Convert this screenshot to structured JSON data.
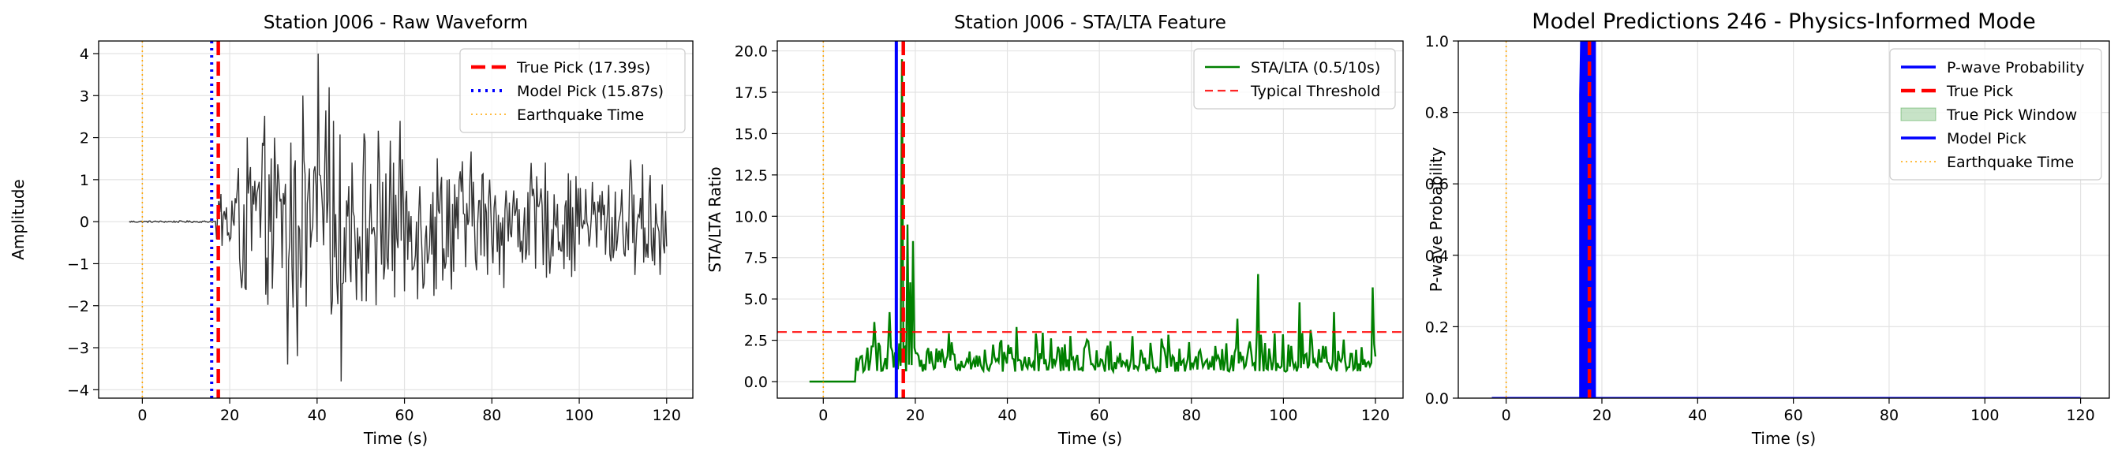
{
  "chart_data": [
    {
      "type": "line",
      "title": "Station J006 - Raw Waveform",
      "xlabel": "Time (s)",
      "ylabel": "Amplitude",
      "xlim": [
        -10,
        126
      ],
      "ylim": [
        -4.2,
        4.3
      ],
      "xticks": [
        0,
        20,
        40,
        60,
        80,
        100,
        120
      ],
      "yticks": [
        -4,
        -3,
        -2,
        -1,
        0,
        1,
        2,
        3,
        4
      ],
      "grid": true,
      "legend_position": "top-right",
      "series": [
        {
          "name": "",
          "color": "#333333",
          "role": "waveform",
          "x_range": [
            -3,
            120
          ],
          "noise_level": 0.02,
          "onset": 17.0,
          "envelope": [
            [
              17,
              1.0
            ],
            [
              25,
              2.6
            ],
            [
              45,
              2.8
            ],
            [
              80,
              1.8
            ],
            [
              100,
              1.5
            ],
            [
              120,
              1.7
            ]
          ],
          "peaks": [
            [
              40.2,
              4.0
            ],
            [
              45.5,
              -3.8
            ],
            [
              42.8,
              3.2
            ],
            [
              35.6,
              -3.2
            ],
            [
              36.7,
              3.0
            ],
            [
              33.3,
              -3.4
            ]
          ]
        },
        {
          "name": "True Pick (17.39s)",
          "color": "#ff0000",
          "role": "vline",
          "x": 17.39,
          "style": "dashed"
        },
        {
          "name": "Model Pick (15.87s)",
          "color": "#0000ff",
          "role": "vline",
          "x": 15.87,
          "style": "dotted"
        },
        {
          "name": "Earthquake Time",
          "color": "#ffa500",
          "role": "vline",
          "x": 0,
          "style": "dotted-thin"
        }
      ]
    },
    {
      "type": "line",
      "title": "Station J006 - STA/LTA Feature",
      "xlabel": "Time (s)",
      "ylabel": "STA/LTA Ratio",
      "xlim": [
        -10,
        126
      ],
      "ylim": [
        -1.0,
        20.6
      ],
      "xticks": [
        0,
        20,
        40,
        60,
        80,
        100,
        120
      ],
      "yticks": [
        0.0,
        2.5,
        5.0,
        7.5,
        10.0,
        12.5,
        15.0,
        17.5,
        20.0
      ],
      "grid": true,
      "legend_position": "top-right",
      "series": [
        {
          "name": "STA/LTA (0.5/10s)",
          "color": "#008000",
          "role": "stalta",
          "x_range": [
            -3,
            120
          ],
          "flat_until": 7.0,
          "spikes": [
            [
              17.2,
              19.5
            ],
            [
              18.4,
              9.5
            ],
            [
              19.6,
              8.5
            ],
            [
              19.0,
              6.0
            ],
            [
              94.5,
              6.5
            ],
            [
              119.5,
              5.7
            ],
            [
              103.5,
              4.8
            ],
            [
              111.0,
              4.2
            ],
            [
              90.0,
              3.8
            ],
            [
              14.5,
              4.2
            ],
            [
              11.0,
              3.6
            ],
            [
              42.0,
              3.3
            ]
          ]
        },
        {
          "name": "Typical Threshold",
          "color": "#ff0000",
          "role": "hline",
          "y": 3.0,
          "style": "dashed"
        },
        {
          "name": "",
          "color": "#ff0000",
          "role": "vline",
          "x": 17.39,
          "style": "dashed"
        },
        {
          "name": "",
          "color": "#0000ff",
          "role": "vline",
          "x": 15.87,
          "style": "solid"
        },
        {
          "name": "",
          "color": "#ffa500",
          "role": "vline",
          "x": 0,
          "style": "dotted-thin"
        }
      ]
    },
    {
      "type": "line",
      "title": "Model Predictions 246 - Physics-Informed Mode",
      "xlabel": "Time (s)",
      "ylabel": "P-wave Probability",
      "xlim": [
        -10,
        126
      ],
      "ylim": [
        0.0,
        1.0
      ],
      "xticks": [
        0,
        20,
        40,
        60,
        80,
        100,
        120
      ],
      "yticks": [
        0.0,
        0.2,
        0.4,
        0.6,
        0.8,
        1.0
      ],
      "grid": true,
      "legend_position": "top-right",
      "series": [
        {
          "name": "P-wave Probability",
          "color": "#0000ff",
          "role": "probability",
          "x_range": [
            -3,
            120
          ],
          "plateau": [
            15.5,
            18.5
          ]
        },
        {
          "name": "True Pick",
          "color": "#ff0000",
          "role": "vline",
          "x": 17.39,
          "style": "dashed"
        },
        {
          "name": "True Pick Window",
          "color": "#008000",
          "role": "span",
          "x0": 16.4,
          "x1": 18.4,
          "alpha": 0.22
        },
        {
          "name": "Model Pick",
          "color": "#0000ff",
          "role": "vline",
          "x": 15.87,
          "style": "solid"
        },
        {
          "name": "Earthquake Time",
          "color": "#ffa500",
          "role": "vline",
          "x": 0,
          "style": "dotted-thin"
        }
      ]
    }
  ]
}
